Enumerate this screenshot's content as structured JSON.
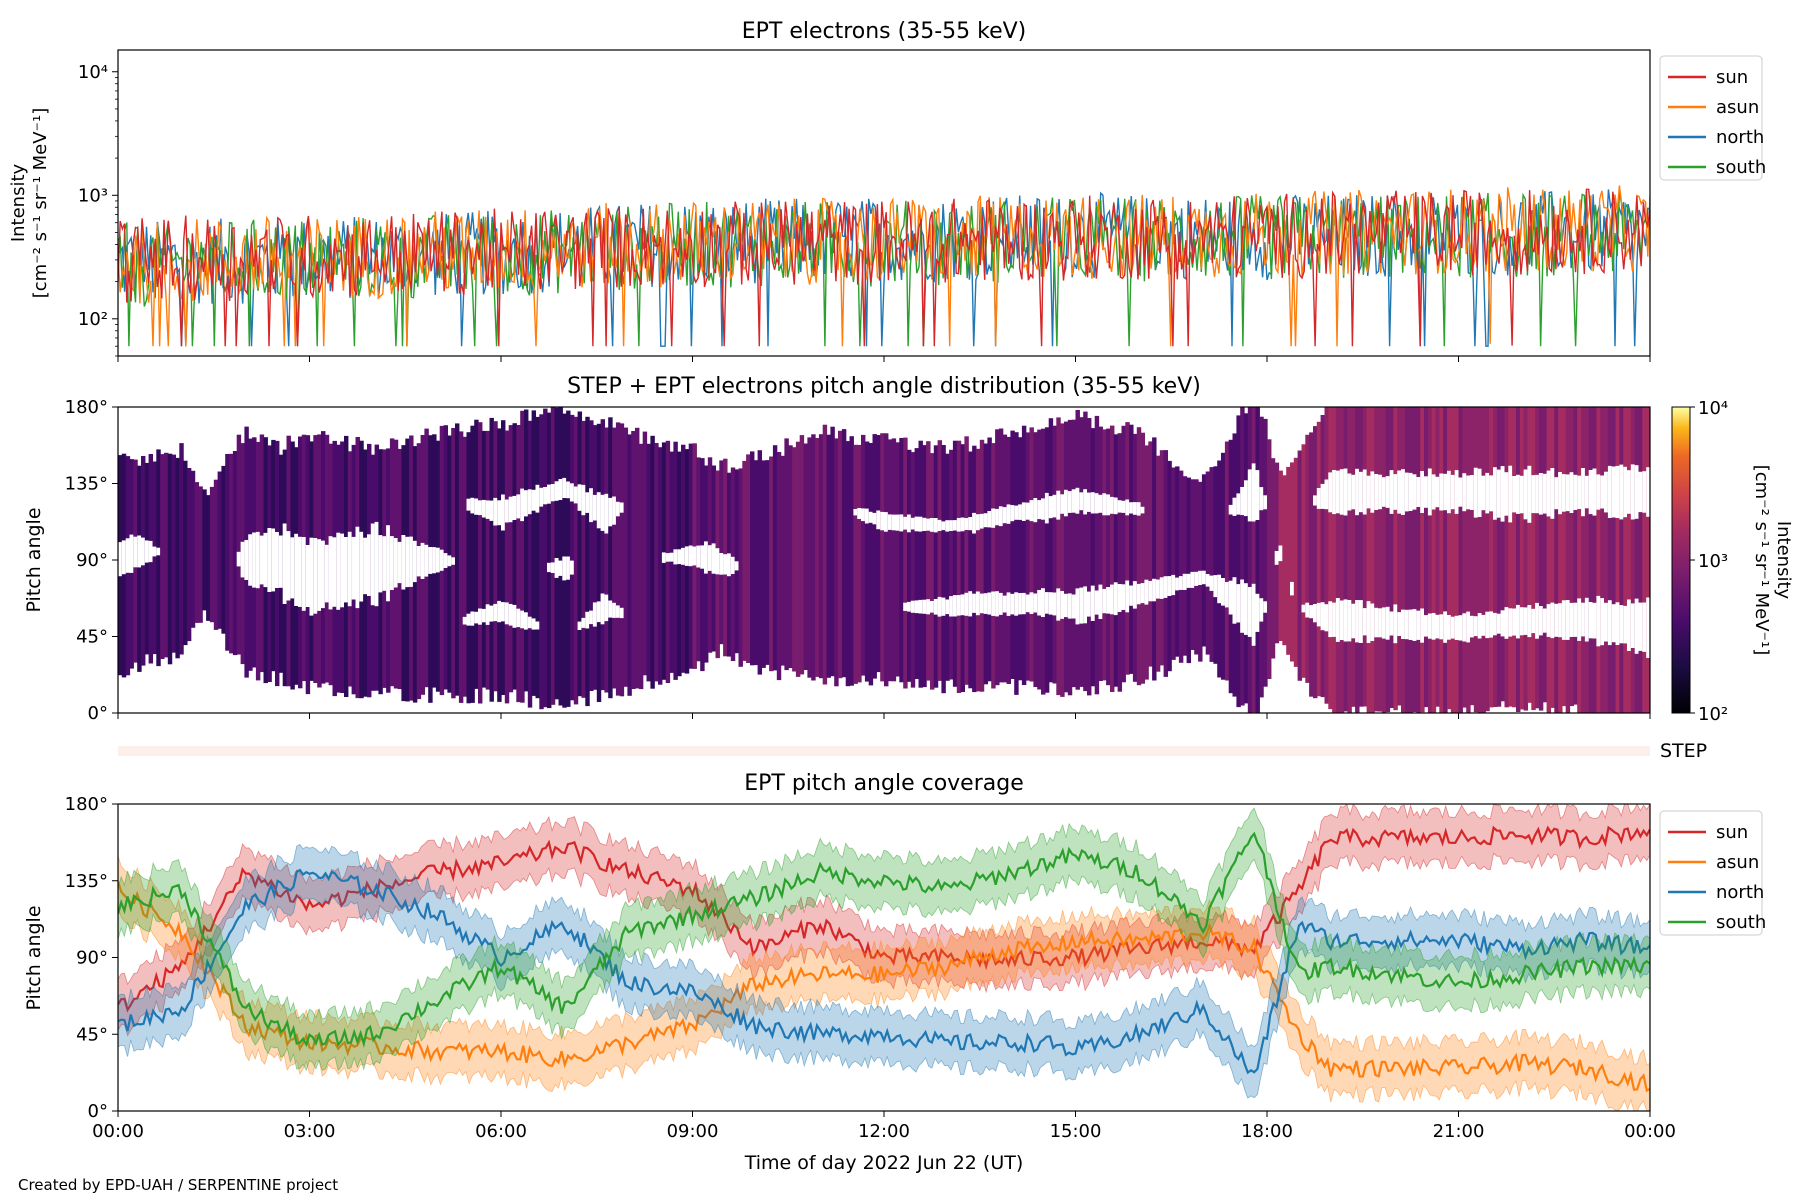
{
  "footer": {
    "credit": "Created by EPD-UAH / SERPENTINE project"
  },
  "colors": {
    "sun": "#d62728",
    "asun": "#ff7f0e",
    "north": "#1f77b4",
    "south": "#2ca02c"
  },
  "chart_data": [
    {
      "type": "line",
      "title": "EPT electrons (35-55 keV)",
      "ylabel_lines": [
        "Intensity",
        "[cm⁻² s⁻¹ sr⁻¹ MeV⁻¹]"
      ],
      "yscale": "log",
      "ylim": [
        50,
        15000
      ],
      "yticks": [
        {
          "value": 100,
          "label": "10²"
        },
        {
          "value": 1000,
          "label": "10³"
        },
        {
          "value": 10000,
          "label": "10⁴"
        }
      ],
      "xlim_hours": [
        0,
        24
      ],
      "legend": "outside-right",
      "grid": false,
      "x_hours": [
        0,
        3,
        6,
        9,
        12,
        15,
        18,
        21,
        24
      ],
      "series": [
        {
          "name": "sun",
          "values": [
            300,
            320,
            350,
            400,
            420,
            450,
            470,
            500,
            520
          ]
        },
        {
          "name": "asun",
          "values": [
            290,
            310,
            360,
            410,
            430,
            460,
            480,
            520,
            540
          ]
        },
        {
          "name": "north",
          "values": [
            280,
            300,
            340,
            420,
            440,
            470,
            460,
            490,
            500
          ]
        },
        {
          "name": "south",
          "values": [
            270,
            300,
            330,
            400,
            410,
            440,
            450,
            470,
            480
          ]
        }
      ],
      "series_range": [
        60,
        1200
      ]
    },
    {
      "type": "heatmap",
      "title": "STEP + EPT electrons pitch angle distribution (35-55 keV)",
      "ylabel": "Pitch angle",
      "ylim": [
        0,
        180
      ],
      "yticks": [
        "0°",
        "45°",
        "90°",
        "135°",
        "180°"
      ],
      "xlim_hours": [
        0,
        24
      ],
      "colorbar": {
        "label_lines": [
          "Intensity",
          "[cm⁻² s⁻¹ sr⁻¹ MeV⁻¹]"
        ],
        "scale": "log",
        "range": [
          100,
          10000
        ],
        "ticks": [
          "10²",
          "10³",
          "10⁴"
        ],
        "colormap": "inferno"
      }
    },
    {
      "type": "heatmap",
      "title": "",
      "label": "STEP",
      "xlim_hours": [
        0,
        24
      ],
      "color": "#fdf0ea"
    },
    {
      "type": "area",
      "title": "EPT pitch angle coverage",
      "ylabel": "Pitch angle",
      "xlabel": "Time of day 2022 Jun 22 (UT)",
      "ylim": [
        0,
        180
      ],
      "yticks": [
        "0°",
        "45°",
        "90°",
        "135°",
        "180°"
      ],
      "xticks": [
        "00:00",
        "03:00",
        "06:00",
        "09:00",
        "12:00",
        "15:00",
        "18:00",
        "21:00",
        "00:00"
      ],
      "xlim_hours": [
        0,
        24
      ],
      "legend": "outside-right",
      "band_halfwidth_deg": 15,
      "series": [
        {
          "name": "sun",
          "x": [
            0,
            1,
            2,
            3,
            4,
            5,
            6,
            7,
            8,
            9,
            10,
            11,
            12,
            13,
            14,
            14.5,
            15,
            16,
            17,
            17.8,
            18.5,
            19,
            21,
            22,
            23,
            24
          ],
          "y": [
            60,
            85,
            140,
            120,
            130,
            140,
            145,
            155,
            140,
            130,
            95,
            110,
            90,
            90,
            88,
            90,
            90,
            95,
            100,
            95,
            130,
            160,
            160,
            162,
            160,
            165
          ]
        },
        {
          "name": "asun",
          "x": [
            0,
            1,
            2,
            3,
            4,
            5,
            6,
            7,
            8,
            9,
            10,
            11,
            12,
            13,
            14,
            14.5,
            15,
            16,
            17,
            17.8,
            18.5,
            19,
            21,
            22,
            23,
            24
          ],
          "y": [
            130,
            105,
            50,
            40,
            38,
            35,
            35,
            30,
            40,
            50,
            75,
            80,
            80,
            85,
            95,
            95,
            100,
            100,
            105,
            95,
            45,
            25,
            25,
            28,
            25,
            15
          ]
        },
        {
          "name": "north",
          "x": [
            0,
            1,
            2,
            3,
            4,
            5,
            6,
            7,
            8,
            9,
            10,
            11,
            12,
            13,
            14,
            14.5,
            15,
            16,
            17,
            17.8,
            18.5,
            19,
            21,
            22,
            23,
            24
          ],
          "y": [
            50,
            60,
            120,
            140,
            130,
            115,
            90,
            110,
            75,
            70,
            50,
            45,
            45,
            40,
            40,
            40,
            35,
            45,
            60,
            20,
            110,
            100,
            100,
            95,
            100,
            95
          ]
        },
        {
          "name": "south",
          "x": [
            0,
            1,
            2,
            3,
            4,
            5,
            6,
            7,
            8,
            9,
            10,
            11,
            12,
            13,
            14,
            14.5,
            15,
            16,
            17,
            17.8,
            18.5,
            19,
            21,
            22,
            23,
            24
          ],
          "y": [
            120,
            130,
            60,
            40,
            45,
            65,
            85,
            60,
            105,
            115,
            125,
            140,
            135,
            130,
            140,
            145,
            150,
            140,
            110,
            165,
            80,
            85,
            75,
            80,
            85,
            85
          ]
        }
      ]
    }
  ]
}
